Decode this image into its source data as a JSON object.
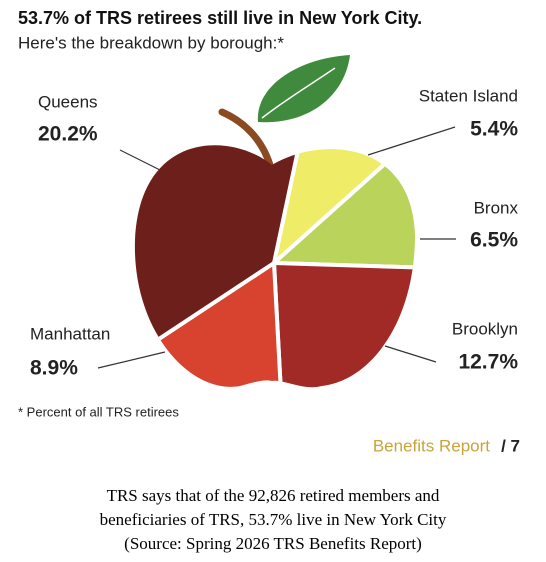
{
  "chart_data": {
    "type": "pie",
    "title": "53.7% of TRS retirees still live in New York City.",
    "subtitle": "Here's the breakdown by borough:*",
    "categories": [
      "Staten Island",
      "Bronx",
      "Brooklyn",
      "Manhattan",
      "Queens"
    ],
    "values": [
      5.4,
      6.5,
      12.7,
      8.9,
      20.2
    ],
    "value_labels": [
      "5.4%",
      "6.5%",
      "12.7%",
      "8.9%",
      "20.2%"
    ],
    "colors": [
      "#efec68",
      "#b9d35b",
      "#a12a26",
      "#d7432f",
      "#6d1f1b"
    ],
    "footnote": "* Percent of all TRS retirees",
    "footer": "Benefits Report",
    "page": "/ 7",
    "caption": [
      "TRS says that of the 92,826 retired members and",
      "beneficiaries of TRS, 53.7% live in New York City",
      "(Source: Spring 2026 TRS Benefits Report)"
    ]
  }
}
